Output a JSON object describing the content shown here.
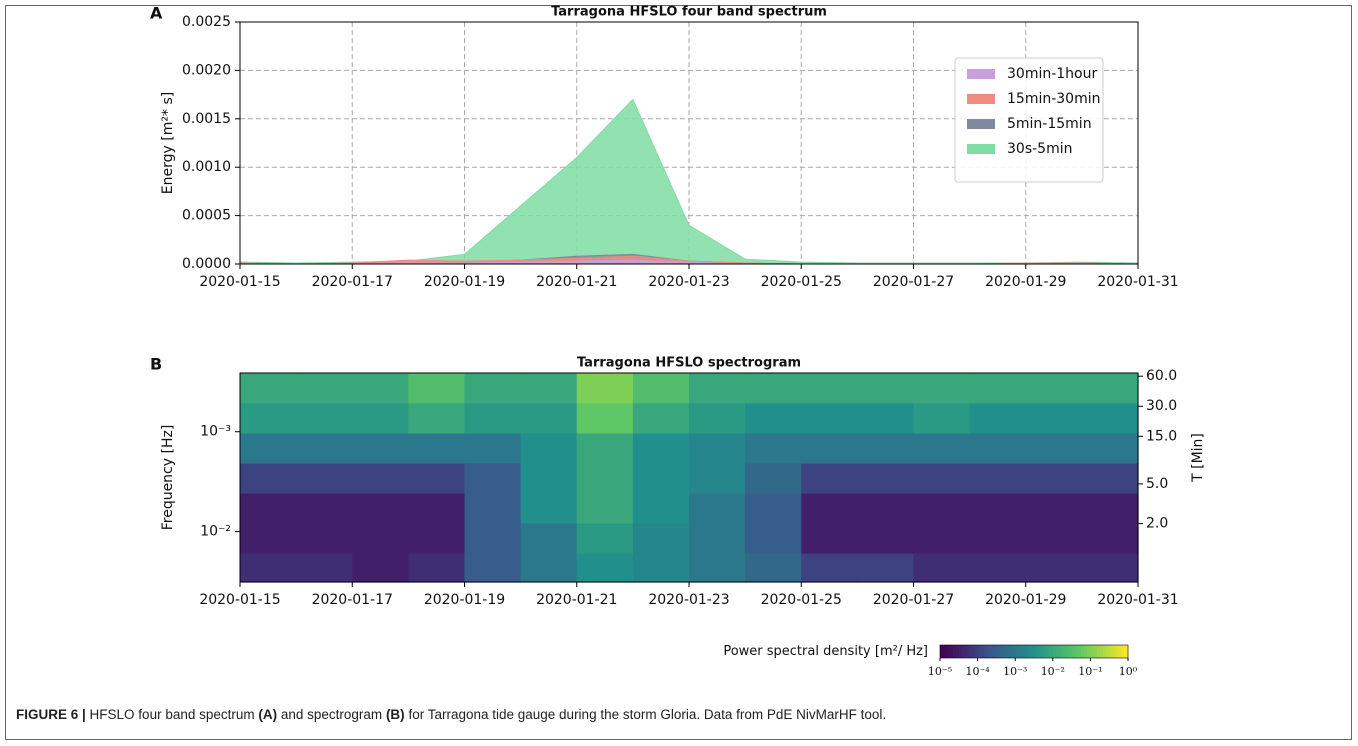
{
  "chart_data": [
    {
      "type": "area",
      "panel_label": "A",
      "title": "Tarragona HFSLO four band spectrum",
      "y_label": "Energy [m²* s]",
      "x": [
        "2020-01-15",
        "2020-01-16",
        "2020-01-17",
        "2020-01-18",
        "2020-01-19",
        "2020-01-20",
        "2020-01-21",
        "2020-01-22",
        "2020-01-23",
        "2020-01-24",
        "2020-01-25",
        "2020-01-26",
        "2020-01-27",
        "2020-01-28",
        "2020-01-29",
        "2020-01-30",
        "2020-01-31"
      ],
      "series": [
        {
          "name": "30min-1hour",
          "color": "#c9a0dc",
          "values": [
            0,
            0,
            0,
            1e-05,
            1e-05,
            2e-05,
            3e-05,
            4e-05,
            2e-05,
            0,
            0,
            0,
            0,
            0,
            0,
            0,
            0
          ]
        },
        {
          "name": "15min-30min",
          "color": "#ee8c80",
          "values": [
            1e-05,
            0,
            1e-05,
            4e-05,
            3e-05,
            4e-05,
            6e-05,
            8e-05,
            3e-05,
            1e-05,
            0,
            0,
            0,
            0,
            1e-05,
            1e-05,
            0
          ]
        },
        {
          "name": "5min-15min",
          "color": "#7f8a9e",
          "values": [
            0,
            0,
            0,
            1e-05,
            2e-05,
            4e-05,
            8e-05,
            0.0001,
            3e-05,
            1e-05,
            0,
            0,
            0,
            0,
            0,
            1e-05,
            0
          ]
        },
        {
          "name": "30s-5min",
          "color": "#7fdca3",
          "values": [
            2e-05,
            1e-05,
            2e-05,
            3e-05,
            0.0001,
            0.0006,
            0.0011,
            0.0017,
            0.0004,
            5e-05,
            2e-05,
            1e-05,
            1e-05,
            1e-05,
            1e-05,
            2e-05,
            1e-05
          ]
        }
      ],
      "xlim": [
        "2020-01-15",
        "2020-01-31"
      ],
      "xticks": [
        "2020-01-15",
        "2020-01-17",
        "2020-01-19",
        "2020-01-21",
        "2020-01-23",
        "2020-01-25",
        "2020-01-27",
        "2020-01-29",
        "2020-01-31"
      ],
      "ylim": [
        0,
        0.0025
      ],
      "yticks": [
        {
          "value": 0,
          "label": "0.0000"
        },
        0.0005,
        {
          "value": 0.001,
          "label": "0.0010"
        },
        0.0015,
        {
          "value": 0.002,
          "label": "0.0020"
        },
        0.0025
      ],
      "grid": true,
      "legend": "upper-right"
    },
    {
      "type": "heatmap",
      "panel_label": "B",
      "title": "Tarragona HFSLO spectrogram",
      "y_label": "Frequency [Hz]",
      "y2_label": "T [Min]",
      "x": [
        "2020-01-15",
        "2020-01-16",
        "2020-01-17",
        "2020-01-18",
        "2020-01-19",
        "2020-01-20",
        "2020-01-21",
        "2020-01-22",
        "2020-01-23",
        "2020-01-24",
        "2020-01-25",
        "2020-01-26",
        "2020-01-27",
        "2020-01-28",
        "2020-01-29",
        "2020-01-30"
      ],
      "y2_bins": [
        64.6,
        32,
        16,
        8,
        4,
        2,
        1,
        0.52
      ],
      "values": [
        [
          0.01,
          0.01,
          0.01,
          0.03,
          0.01,
          0.01,
          0.1,
          0.03,
          0.01,
          0.01,
          0.01,
          0.01,
          0.01,
          0.01,
          0.01,
          0.01
        ],
        [
          0.005,
          0.005,
          0.005,
          0.01,
          0.005,
          0.005,
          0.05,
          0.01,
          0.005,
          0.003,
          0.003,
          0.003,
          0.005,
          0.003,
          0.003,
          0.003
        ],
        [
          0.001,
          0.001,
          0.001,
          0.001,
          0.001,
          0.003,
          0.01,
          0.003,
          0.002,
          0.001,
          0.001,
          0.001,
          0.001,
          0.001,
          0.001,
          0.001
        ],
        [
          0.0001,
          0.0001,
          0.0001,
          0.0001,
          0.0003,
          0.003,
          0.01,
          0.003,
          0.002,
          0.0005,
          0.0001,
          0.0001,
          0.0001,
          0.0001,
          0.0001,
          0.0001
        ],
        [
          3e-05,
          3e-05,
          3e-05,
          3e-05,
          0.0003,
          0.003,
          0.01,
          0.003,
          0.001,
          0.0003,
          3e-05,
          3e-05,
          3e-05,
          3e-05,
          3e-05,
          3e-05
        ],
        [
          3e-05,
          3e-05,
          3e-05,
          3e-05,
          0.0003,
          0.001,
          0.005,
          0.002,
          0.001,
          0.0003,
          3e-05,
          3e-05,
          3e-05,
          3e-05,
          3e-05,
          3e-05
        ],
        [
          5e-05,
          5e-05,
          3e-05,
          5e-05,
          0.0003,
          0.001,
          0.003,
          0.002,
          0.001,
          0.0005,
          0.0001,
          0.0001,
          5e-05,
          5e-05,
          5e-05,
          5e-05
        ]
      ],
      "xlim": [
        "2020-01-15",
        "2020-01-31"
      ],
      "xticks": [
        "2020-01-15",
        "2020-01-17",
        "2020-01-19",
        "2020-01-21",
        "2020-01-23",
        "2020-01-25",
        "2020-01-27",
        "2020-01-29",
        "2020-01-31"
      ],
      "ylim": [
        0.000258,
        0.032
      ],
      "y_log": true,
      "yticks": [
        {
          "value": 0.001,
          "label": "10⁻³"
        },
        {
          "value": 0.01,
          "label": "10⁻²"
        }
      ],
      "y2lim": [
        64.6,
        0.52
      ],
      "y2_log": true,
      "y2ticks": [
        {
          "value": 60,
          "label": "60.0"
        },
        {
          "value": 30,
          "label": "30.0"
        },
        {
          "value": 15,
          "label": "15.0"
        },
        {
          "value": 5,
          "label": "5.0"
        },
        {
          "value": 2,
          "label": "2.0"
        }
      ],
      "colorbar_label": "Power spectral density [m²/ Hz]",
      "clim": [
        1e-05,
        1
      ],
      "colorbar_log": true,
      "colorbar_ticks": [
        {
          "value": 1e-05,
          "label": "10⁻⁵"
        },
        {
          "value": 0.0001,
          "label": "10⁻⁴"
        },
        {
          "value": 0.001,
          "label": "10⁻³"
        },
        {
          "value": 0.01,
          "label": "10⁻²"
        },
        {
          "value": 0.1,
          "label": "10⁻¹"
        },
        {
          "value": 1,
          "label": "10⁰"
        }
      ],
      "colormap": [
        "#440154",
        "#3b528b",
        "#21918c",
        "#5ec962",
        "#fde725"
      ]
    }
  ],
  "caption": {
    "label": "FIGURE 6 |",
    "text1": " HFSLO four band spectrum ",
    "bold1": "(A)",
    "text2": " and spectrogram ",
    "bold2": "(B)",
    "text3": " for Tarragona tide gauge during the storm Gloria. Data from PdE NivMarHF tool."
  }
}
